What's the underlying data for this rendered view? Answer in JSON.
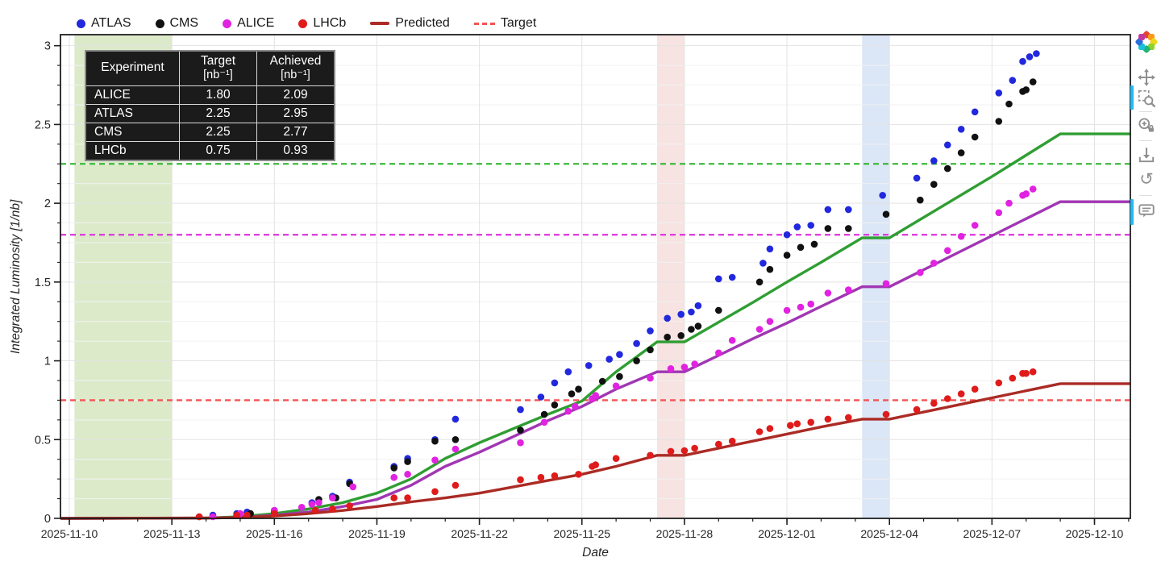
{
  "legend": {
    "items": [
      {
        "label": "ATLAS",
        "kind": "dot",
        "color": "#2228dd"
      },
      {
        "label": "CMS",
        "kind": "dot",
        "color": "#111111"
      },
      {
        "label": "ALICE",
        "kind": "dot",
        "color": "#e122e1"
      },
      {
        "label": "LHCb",
        "kind": "dot",
        "color": "#e01b1b"
      },
      {
        "label": "Predicted",
        "kind": "line",
        "color": "#ad2b25"
      },
      {
        "label": "Target",
        "kind": "dash",
        "color": "#f45353"
      }
    ]
  },
  "table": {
    "header": {
      "col0": "Experiment",
      "col1": "Target",
      "col1_sub": "[nb⁻¹]",
      "col2": "Achieved",
      "col2_sub": "[nb⁻¹]"
    },
    "rows": [
      {
        "experiment": "ALICE",
        "target": "1.80",
        "achieved": "2.09"
      },
      {
        "experiment": "ATLAS",
        "target": "2.25",
        "achieved": "2.95"
      },
      {
        "experiment": "CMS",
        "target": "2.25",
        "achieved": "2.77"
      },
      {
        "experiment": "LHCb",
        "target": "0.75",
        "achieved": "0.93"
      }
    ]
  },
  "axes": {
    "x_label": "Date",
    "y_label": "Integrated Luminosity [1/nb]"
  },
  "toolbar": {
    "tools": [
      "bokeh-logo",
      "pan",
      "box-zoom",
      "wheel-zoom-lock",
      "save",
      "reset",
      "hover"
    ],
    "active_tools": [
      "box-zoom",
      "hover"
    ],
    "accent_color": "#29b8f0"
  },
  "chart_data": {
    "type": "scatter",
    "title": "",
    "xlabel": "Date",
    "ylabel": "Integrated Luminosity [1/nb]",
    "x_origin_date": "2025-11-10",
    "x_range_days": [
      -0.26,
      31.05
    ],
    "ylim": [
      0,
      3.07
    ],
    "grid": true,
    "x_ticks": [
      {
        "day": 0,
        "label": "2025-11-10"
      },
      {
        "day": 3,
        "label": "2025-11-13"
      },
      {
        "day": 6,
        "label": "2025-11-16"
      },
      {
        "day": 9,
        "label": "2025-11-19"
      },
      {
        "day": 12,
        "label": "2025-11-22"
      },
      {
        "day": 15,
        "label": "2025-11-25"
      },
      {
        "day": 18,
        "label": "2025-11-28"
      },
      {
        "day": 21,
        "label": "2025-12-01"
      },
      {
        "day": 24,
        "label": "2025-12-04"
      },
      {
        "day": 27,
        "label": "2025-12-07"
      },
      {
        "day": 30,
        "label": "2025-12-10"
      }
    ],
    "y_ticks": [
      {
        "v": 0,
        "label": "0"
      },
      {
        "v": 0.5,
        "label": "0.5"
      },
      {
        "v": 1,
        "label": "1"
      },
      {
        "v": 1.5,
        "label": "1.5"
      },
      {
        "v": 2,
        "label": "2"
      },
      {
        "v": 2.5,
        "label": "2.5"
      },
      {
        "v": 3,
        "label": "3"
      }
    ],
    "bands": [
      {
        "name": "band-green",
        "from_day": 0.15,
        "to_day": 3.0,
        "color": "rgba(139,185,75,0.30)"
      },
      {
        "name": "band-pink",
        "from_day": 17.2,
        "to_day": 18.0,
        "color": "rgba(192,70,60,0.15)"
      },
      {
        "name": "band-blue",
        "from_day": 23.2,
        "to_day": 24.0,
        "color": "rgba(90,140,220,0.22)"
      }
    ],
    "targets": [
      {
        "name": "ATLAS/CMS target",
        "value": 2.25,
        "color": "#3cb93c"
      },
      {
        "name": "ALICE target",
        "value": 1.8,
        "color": "#df3fdf"
      },
      {
        "name": "LHCb target",
        "value": 0.75,
        "color": "#f45353"
      }
    ],
    "predicted_series": [
      {
        "name": "ATLAS/CMS predicted",
        "kind": "line",
        "color": "#2f9e32",
        "points": [
          [
            -0.26,
            0
          ],
          [
            4,
            0.002
          ],
          [
            5,
            0.01
          ],
          [
            6,
            0.03
          ],
          [
            7,
            0.06
          ],
          [
            8,
            0.1
          ],
          [
            9,
            0.16
          ],
          [
            10,
            0.25
          ],
          [
            11,
            0.38
          ],
          [
            12,
            0.48
          ],
          [
            13,
            0.57
          ],
          [
            14,
            0.66
          ],
          [
            15,
            0.745
          ],
          [
            16,
            0.93
          ],
          [
            17.2,
            1.12
          ],
          [
            18,
            1.12
          ],
          [
            19,
            1.245
          ],
          [
            20,
            1.37
          ],
          [
            21,
            1.5
          ],
          [
            22,
            1.625
          ],
          [
            23.2,
            1.78
          ],
          [
            24,
            1.78
          ],
          [
            25,
            1.91
          ],
          [
            26,
            2.04
          ],
          [
            27,
            2.17
          ],
          [
            28,
            2.305
          ],
          [
            29,
            2.44
          ],
          [
            31.05,
            2.44
          ]
        ]
      },
      {
        "name": "ALICE predicted",
        "kind": "line",
        "color": "#a136b3",
        "points": [
          [
            -0.26,
            0
          ],
          [
            4,
            0.002
          ],
          [
            5,
            0.005
          ],
          [
            6,
            0.02
          ],
          [
            7,
            0.04
          ],
          [
            8,
            0.075
          ],
          [
            9,
            0.12
          ],
          [
            10,
            0.21
          ],
          [
            11,
            0.33
          ],
          [
            12,
            0.42
          ],
          [
            13,
            0.52
          ],
          [
            14,
            0.62
          ],
          [
            15,
            0.71
          ],
          [
            16,
            0.82
          ],
          [
            17.2,
            0.93
          ],
          [
            18,
            0.93
          ],
          [
            19,
            1.034
          ],
          [
            20,
            1.14
          ],
          [
            21,
            1.24
          ],
          [
            22,
            1.345
          ],
          [
            23.2,
            1.47
          ],
          [
            24,
            1.47
          ],
          [
            25,
            1.578
          ],
          [
            26,
            1.686
          ],
          [
            27,
            1.794
          ],
          [
            28,
            1.902
          ],
          [
            29,
            2.01
          ],
          [
            31.05,
            2.01
          ]
        ]
      },
      {
        "name": "LHCb predicted",
        "kind": "line",
        "color": "#ab2b25",
        "points": [
          [
            -0.26,
            0
          ],
          [
            4,
            0.002
          ],
          [
            5,
            0.005
          ],
          [
            6,
            0.015
          ],
          [
            7,
            0.03
          ],
          [
            8,
            0.05
          ],
          [
            9,
            0.075
          ],
          [
            10,
            0.105
          ],
          [
            11,
            0.13
          ],
          [
            12,
            0.16
          ],
          [
            13,
            0.2
          ],
          [
            14,
            0.24
          ],
          [
            15,
            0.28
          ],
          [
            16,
            0.33
          ],
          [
            17.2,
            0.4
          ],
          [
            18,
            0.4
          ],
          [
            19,
            0.445
          ],
          [
            20,
            0.49
          ],
          [
            21,
            0.535
          ],
          [
            22,
            0.58
          ],
          [
            23.2,
            0.63
          ],
          [
            24,
            0.63
          ],
          [
            25,
            0.675
          ],
          [
            26,
            0.72
          ],
          [
            27,
            0.765
          ],
          [
            28,
            0.81
          ],
          [
            29,
            0.855
          ],
          [
            31.05,
            0.855
          ]
        ]
      }
    ],
    "scatter_series": [
      {
        "name": "ATLAS",
        "kind": "scatter",
        "color": "#2228dd",
        "points": [
          [
            3.8,
            0.01
          ],
          [
            4.2,
            0.02
          ],
          [
            4.9,
            0.03
          ],
          [
            5.2,
            0.04
          ],
          [
            6.0,
            0.05
          ],
          [
            7.1,
            0.1
          ],
          [
            7.7,
            0.14
          ],
          [
            8.2,
            0.23
          ],
          [
            9.5,
            0.33
          ],
          [
            9.9,
            0.38
          ],
          [
            10.7,
            0.5
          ],
          [
            11.3,
            0.63
          ],
          [
            13.2,
            0.69
          ],
          [
            13.8,
            0.77
          ],
          [
            14.2,
            0.86
          ],
          [
            14.6,
            0.93
          ],
          [
            15.2,
            0.97
          ],
          [
            15.8,
            1.01
          ],
          [
            16.1,
            1.04
          ],
          [
            16.6,
            1.11
          ],
          [
            17.0,
            1.19
          ],
          [
            17.5,
            1.27
          ],
          [
            17.9,
            1.295
          ],
          [
            18.2,
            1.31
          ],
          [
            18.4,
            1.35
          ],
          [
            19.0,
            1.52
          ],
          [
            19.4,
            1.53
          ],
          [
            20.3,
            1.62
          ],
          [
            20.5,
            1.71
          ],
          [
            21.0,
            1.8
          ],
          [
            21.3,
            1.85
          ],
          [
            21.7,
            1.86
          ],
          [
            22.2,
            1.96
          ],
          [
            22.8,
            1.96
          ],
          [
            23.8,
            2.05
          ],
          [
            24.8,
            2.16
          ],
          [
            25.3,
            2.27
          ],
          [
            25.7,
            2.37
          ],
          [
            26.1,
            2.47
          ],
          [
            26.5,
            2.58
          ],
          [
            27.2,
            2.7
          ],
          [
            27.6,
            2.78
          ],
          [
            27.9,
            2.9
          ],
          [
            28.1,
            2.93
          ],
          [
            28.3,
            2.95
          ]
        ]
      },
      {
        "name": "CMS",
        "kind": "scatter",
        "color": "#111111",
        "points": [
          [
            4.9,
            0.02
          ],
          [
            5.3,
            0.03
          ],
          [
            6.0,
            0.04
          ],
          [
            7.3,
            0.12
          ],
          [
            7.8,
            0.13
          ],
          [
            8.2,
            0.22
          ],
          [
            9.5,
            0.32
          ],
          [
            9.9,
            0.36
          ],
          [
            10.7,
            0.49
          ],
          [
            11.3,
            0.5
          ],
          [
            13.2,
            0.56
          ],
          [
            13.9,
            0.66
          ],
          [
            14.2,
            0.72
          ],
          [
            14.7,
            0.79
          ],
          [
            14.9,
            0.82
          ],
          [
            15.6,
            0.87
          ],
          [
            16.1,
            0.9
          ],
          [
            16.6,
            1.0
          ],
          [
            17.0,
            1.07
          ],
          [
            17.5,
            1.15
          ],
          [
            17.9,
            1.16
          ],
          [
            18.2,
            1.2
          ],
          [
            18.4,
            1.22
          ],
          [
            19.0,
            1.32
          ],
          [
            20.2,
            1.5
          ],
          [
            20.5,
            1.58
          ],
          [
            21.0,
            1.67
          ],
          [
            21.4,
            1.72
          ],
          [
            21.8,
            1.74
          ],
          [
            22.2,
            1.84
          ],
          [
            22.8,
            1.84
          ],
          [
            23.9,
            1.93
          ],
          [
            24.9,
            2.02
          ],
          [
            25.3,
            2.12
          ],
          [
            25.7,
            2.22
          ],
          [
            26.1,
            2.32
          ],
          [
            26.5,
            2.42
          ],
          [
            27.2,
            2.52
          ],
          [
            27.5,
            2.63
          ],
          [
            27.9,
            2.71
          ],
          [
            28.0,
            2.72
          ],
          [
            28.2,
            2.77
          ]
        ]
      },
      {
        "name": "ALICE",
        "kind": "scatter",
        "color": "#e122e1",
        "points": [
          [
            4.2,
            0.01
          ],
          [
            5.0,
            0.03
          ],
          [
            6.0,
            0.05
          ],
          [
            6.8,
            0.07
          ],
          [
            7.1,
            0.09
          ],
          [
            7.3,
            0.1
          ],
          [
            7.7,
            0.13
          ],
          [
            8.3,
            0.2
          ],
          [
            9.5,
            0.26
          ],
          [
            9.9,
            0.28
          ],
          [
            10.7,
            0.37
          ],
          [
            11.3,
            0.44
          ],
          [
            13.2,
            0.48
          ],
          [
            13.9,
            0.61
          ],
          [
            14.6,
            0.68
          ],
          [
            14.8,
            0.71
          ],
          [
            15.3,
            0.76
          ],
          [
            15.4,
            0.78
          ],
          [
            16.0,
            0.84
          ],
          [
            17.0,
            0.89
          ],
          [
            17.6,
            0.95
          ],
          [
            18.0,
            0.96
          ],
          [
            18.3,
            0.98
          ],
          [
            19.0,
            1.05
          ],
          [
            19.4,
            1.13
          ],
          [
            20.2,
            1.2
          ],
          [
            20.5,
            1.25
          ],
          [
            21.0,
            1.32
          ],
          [
            21.4,
            1.34
          ],
          [
            21.7,
            1.36
          ],
          [
            22.2,
            1.43
          ],
          [
            22.8,
            1.45
          ],
          [
            23.9,
            1.49
          ],
          [
            24.9,
            1.56
          ],
          [
            25.3,
            1.62
          ],
          [
            25.7,
            1.7
          ],
          [
            26.1,
            1.79
          ],
          [
            26.5,
            1.86
          ],
          [
            27.2,
            1.94
          ],
          [
            27.5,
            2.0
          ],
          [
            27.9,
            2.05
          ],
          [
            28.0,
            2.06
          ],
          [
            28.2,
            2.09
          ]
        ]
      },
      {
        "name": "LHCb",
        "kind": "scatter",
        "color": "#e01b1b",
        "points": [
          [
            3.8,
            0.01
          ],
          [
            4.9,
            0.02
          ],
          [
            5.2,
            0.02
          ],
          [
            6.0,
            0.03
          ],
          [
            7.2,
            0.05
          ],
          [
            7.7,
            0.06
          ],
          [
            8.2,
            0.08
          ],
          [
            9.5,
            0.13
          ],
          [
            9.9,
            0.13
          ],
          [
            10.7,
            0.17
          ],
          [
            11.3,
            0.21
          ],
          [
            13.2,
            0.245
          ],
          [
            13.8,
            0.26
          ],
          [
            14.2,
            0.27
          ],
          [
            14.9,
            0.28
          ],
          [
            15.3,
            0.33
          ],
          [
            15.4,
            0.34
          ],
          [
            16.0,
            0.38
          ],
          [
            17.0,
            0.4
          ],
          [
            17.6,
            0.425
          ],
          [
            18.0,
            0.43
          ],
          [
            18.3,
            0.445
          ],
          [
            19.0,
            0.47
          ],
          [
            19.4,
            0.49
          ],
          [
            20.2,
            0.55
          ],
          [
            20.5,
            0.57
          ],
          [
            21.1,
            0.59
          ],
          [
            21.3,
            0.6
          ],
          [
            21.7,
            0.61
          ],
          [
            22.2,
            0.63
          ],
          [
            22.8,
            0.64
          ],
          [
            23.9,
            0.66
          ],
          [
            24.8,
            0.69
          ],
          [
            25.3,
            0.73
          ],
          [
            25.7,
            0.76
          ],
          [
            26.1,
            0.79
          ],
          [
            26.5,
            0.82
          ],
          [
            27.2,
            0.86
          ],
          [
            27.6,
            0.89
          ],
          [
            27.9,
            0.92
          ],
          [
            28.0,
            0.92
          ],
          [
            28.2,
            0.93
          ]
        ]
      }
    ]
  }
}
